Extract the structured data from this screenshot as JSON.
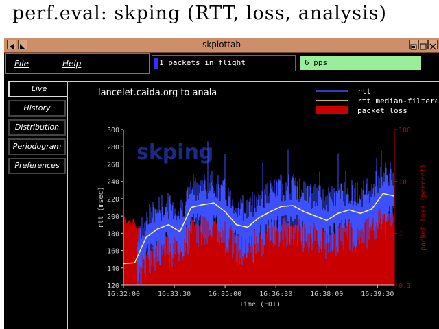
{
  "slide": {
    "title": "perf.eval:  skping  (RTT,  loss,  analysis)"
  },
  "window": {
    "title": "skplottab"
  },
  "menu": {
    "file": "File",
    "help": "Help"
  },
  "status": {
    "in_flight": "1 packets in flight",
    "rate": "6 pps"
  },
  "tabs": [
    {
      "label": "Live",
      "active": true
    },
    {
      "label": "History"
    },
    {
      "label": "Distribution"
    },
    {
      "label": "Periodogram"
    },
    {
      "label": "Preferences"
    }
  ],
  "colors": {
    "rtt": "#3c50ff",
    "median": "#ffff66",
    "loss": "#c80000",
    "pps": "#99ee99",
    "titlebar": "#cc8f6a"
  },
  "chart_data": {
    "type": "line",
    "title": "lancelet.caida.org to anala",
    "watermark": "skping",
    "xlabel": "Time (EDT)",
    "ylabel": "rtt (msec)",
    "y2label": "packet loss (percent)",
    "x_ticks": [
      "16:32:00",
      "16:33:30",
      "16:35:00",
      "16:36:30",
      "16:38:00",
      "16:39:30"
    ],
    "xlim": [
      "16:32:00",
      "16:40:00"
    ],
    "y_ticks": [
      120,
      140,
      160,
      180,
      200,
      220,
      240,
      260,
      280,
      300
    ],
    "ylim": [
      120,
      300
    ],
    "y2_ticks": [
      "0.1",
      "1",
      "10",
      "100"
    ],
    "y2_scale": "log",
    "y2lim": [
      0.1,
      100
    ],
    "legend": [
      "rtt",
      "rtt median-filtered",
      "packet loss"
    ],
    "legend_position": "top-right",
    "series": [
      {
        "name": "rtt median-filtered",
        "x": [
          "16:32:00",
          "16:32:20",
          "16:32:40",
          "16:33:00",
          "16:33:20",
          "16:33:40",
          "16:34:00",
          "16:34:20",
          "16:34:40",
          "16:35:00",
          "16:35:20",
          "16:35:40",
          "16:36:00",
          "16:36:20",
          "16:36:40",
          "16:37:00",
          "16:37:20",
          "16:37:40",
          "16:38:00",
          "16:38:20",
          "16:38:40",
          "16:39:00",
          "16:39:20",
          "16:39:40",
          "16:40:00"
        ],
        "values": [
          145,
          146,
          175,
          185,
          190,
          182,
          210,
          213,
          215,
          205,
          190,
          187,
          198,
          205,
          211,
          212,
          205,
          200,
          195,
          203,
          207,
          203,
          208,
          226,
          223
        ]
      },
      {
        "name": "packet loss",
        "x": [
          "16:32:00",
          "16:32:20",
          "16:32:40",
          "16:33:00",
          "16:33:20",
          "16:33:40",
          "16:34:00",
          "16:34:20",
          "16:34:40",
          "16:35:00",
          "16:35:20",
          "16:35:40",
          "16:36:00",
          "16:36:20",
          "16:36:40",
          "16:37:00",
          "16:37:20",
          "16:37:40",
          "16:38:00",
          "16:38:20",
          "16:38:40",
          "16:39:00",
          "16:39:20",
          "16:39:40",
          "16:40:00"
        ],
        "values": [
          2.0,
          1.5,
          0.4,
          0.7,
          1.0,
          0.9,
          1.5,
          1.9,
          1.7,
          1.4,
          1.0,
          0.9,
          1.1,
          1.4,
          1.6,
          1.5,
          1.7,
          1.3,
          1.1,
          1.3,
          1.6,
          2.0,
          2.2,
          2.4,
          2.4
        ]
      }
    ]
  }
}
